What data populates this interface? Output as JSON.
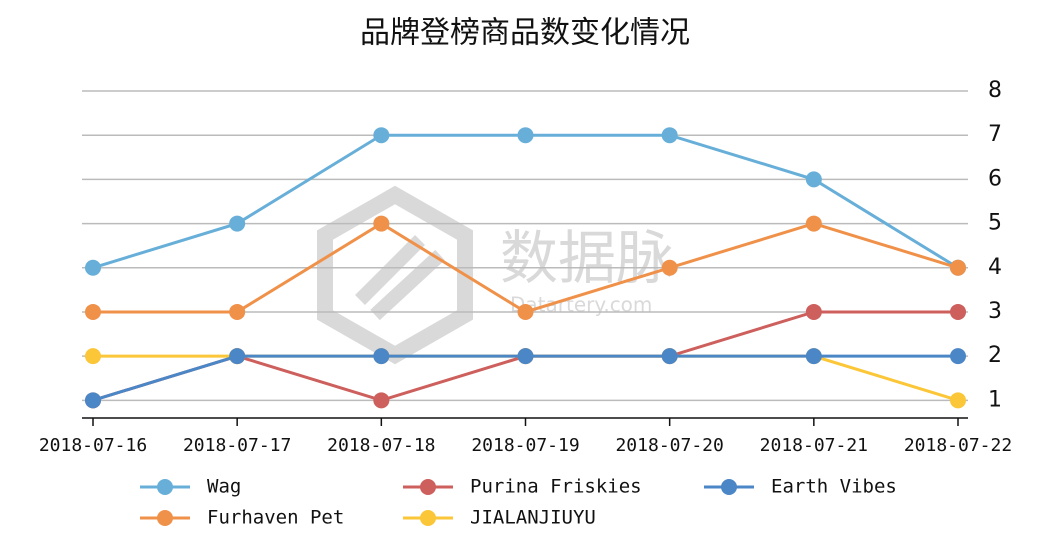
{
  "chart_data": {
    "type": "line",
    "title": "品牌登榜商品数变化情况",
    "watermark": [
      "数据脉",
      "Datartery.com"
    ],
    "x": [
      "2018-07-16",
      "2018-07-17",
      "2018-07-18",
      "2018-07-19",
      "2018-07-20",
      "2018-07-21",
      "2018-07-22"
    ],
    "series": [
      {
        "name": "Wag",
        "color": "#67afd9",
        "values": [
          4,
          5,
          7,
          7,
          7,
          6,
          4
        ]
      },
      {
        "name": "Furhaven Pet",
        "color": "#f0914a",
        "values": [
          3,
          3,
          5,
          3,
          4,
          5,
          4
        ]
      },
      {
        "name": "Purina Friskies",
        "color": "#cd5f5c",
        "values": [
          1,
          2,
          1,
          2,
          2,
          3,
          3
        ]
      },
      {
        "name": "JIALANJIUYU",
        "color": "#fbc637",
        "values": [
          2,
          2,
          2,
          2,
          2,
          2,
          1
        ]
      },
      {
        "name": "Earth Vibes",
        "color": "#4b86c6",
        "values": [
          1,
          2,
          2,
          2,
          2,
          2,
          2
        ]
      }
    ],
    "ylim": [
      0.6,
      8
    ],
    "yticks": [
      1,
      2,
      3,
      4,
      5,
      6,
      7,
      8
    ],
    "grid": true,
    "y_axis_side": "right",
    "legend": "bottom"
  }
}
